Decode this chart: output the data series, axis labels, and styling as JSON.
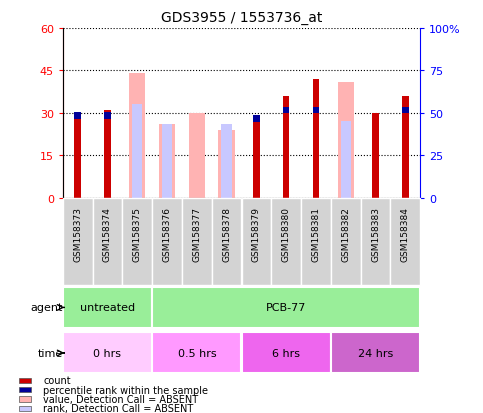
{
  "title": "GDS3955 / 1553736_at",
  "samples": [
    "GSM158373",
    "GSM158374",
    "GSM158375",
    "GSM158376",
    "GSM158377",
    "GSM158378",
    "GSM158379",
    "GSM158380",
    "GSM158381",
    "GSM158382",
    "GSM158383",
    "GSM158384"
  ],
  "count_values": [
    30,
    31,
    0,
    0,
    0,
    0,
    29,
    36,
    42,
    0,
    30,
    36
  ],
  "rank_values": [
    29,
    29,
    0,
    0,
    0,
    0,
    28,
    31,
    31,
    0,
    0,
    31
  ],
  "absent_value_values": [
    0,
    0,
    44,
    26,
    30,
    24,
    0,
    0,
    0,
    41,
    0,
    0
  ],
  "absent_rank_values": [
    0,
    0,
    33,
    26,
    0,
    26,
    0,
    0,
    0,
    27,
    0,
    0
  ],
  "ylim_left": [
    0,
    60
  ],
  "ylim_right": [
    0,
    100
  ],
  "yticks_left": [
    0,
    15,
    30,
    45,
    60
  ],
  "yticks_right": [
    0,
    25,
    50,
    75,
    100
  ],
  "ytick_labels_right": [
    "0",
    "25",
    "50",
    "75",
    "100%"
  ],
  "color_count": "#cc0000",
  "color_rank": "#000099",
  "color_absent_value": "#ffb3b3",
  "color_absent_rank": "#c8c8ff",
  "agent_untreated_color": "#99ee99",
  "agent_pcb_color": "#99ee99",
  "time_0_color": "#ffccff",
  "time_05_color": "#ff99ff",
  "time_6_color": "#ee66ee",
  "time_24_color": "#cc66cc",
  "fig_bg": "#ffffff"
}
